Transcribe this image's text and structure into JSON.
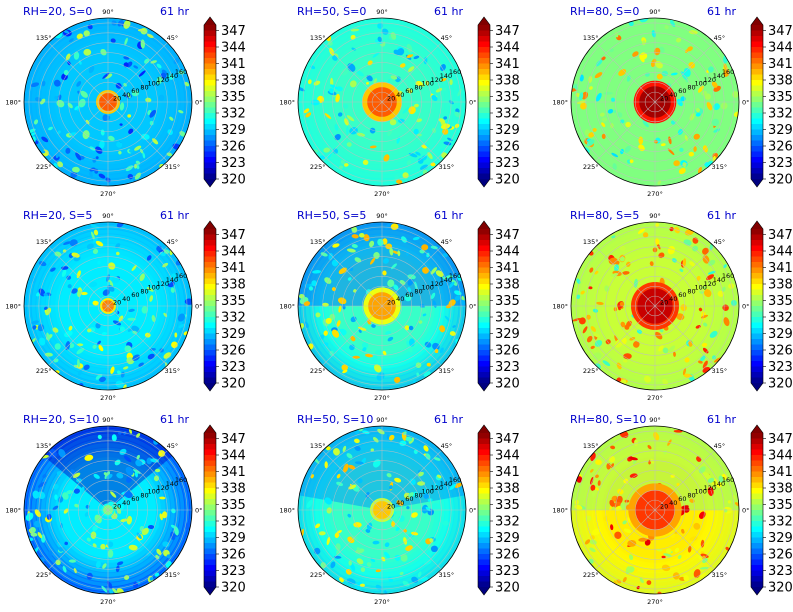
{
  "figure": {
    "colorbar_ticks": [
      "347",
      "344",
      "341",
      "338",
      "335",
      "332",
      "329",
      "326",
      "323",
      "320"
    ],
    "colorbar_range": [
      320,
      348
    ],
    "colorbar_colormap": "jet",
    "title_color": "#0000cc",
    "radial_tick_labels": [
      "20",
      "40",
      "60",
      "80",
      "100",
      "120",
      "140",
      "160"
    ],
    "angle_tick_labels": [
      "90°",
      "45°",
      "0°",
      "315°",
      "270°",
      "225°",
      "180°",
      "135°"
    ]
  },
  "chart_data": [
    {
      "type": "heatmap",
      "projection": "polar",
      "title_left": "RH=20, S=0",
      "title_right": "61 hr",
      "rlim": [
        0,
        170
      ],
      "center_value": 342,
      "background_value": 329,
      "outer_value": 328,
      "core_radius_km": 18,
      "eyewall_radius_km": 18,
      "asymmetry_deg": 0
    },
    {
      "type": "heatmap",
      "projection": "polar",
      "title_left": "RH=50, S=0",
      "title_right": "61 hr",
      "rlim": [
        0,
        170
      ],
      "center_value": 342,
      "background_value": 332,
      "outer_value": 331,
      "core_radius_km": 30,
      "eyewall_radius_km": 30,
      "asymmetry_deg": 0
    },
    {
      "type": "heatmap",
      "projection": "polar",
      "title_left": "RH=80, S=0",
      "title_right": "61 hr",
      "rlim": [
        0,
        170
      ],
      "center_value": 347,
      "background_value": 334,
      "outer_value": 334,
      "core_radius_km": 32,
      "eyewall_radius_km": 32,
      "asymmetry_deg": 0
    },
    {
      "type": "heatmap",
      "projection": "polar",
      "title_left": "RH=20, S=5",
      "title_right": "61 hr",
      "rlim": [
        0,
        170
      ],
      "center_value": 341,
      "background_value": 330,
      "outer_value": 328,
      "core_radius_km": 12,
      "eyewall_radius_km": 12,
      "asymmetry_deg": 0
    },
    {
      "type": "heatmap",
      "projection": "polar",
      "title_left": "RH=50, S=5",
      "title_right": "61 hr",
      "rlim": [
        0,
        170
      ],
      "center_value": 340,
      "background_value": 332,
      "outer_value": 328,
      "core_radius_km": 28,
      "eyewall_radius_km": 28,
      "asymmetry_deg": 20
    },
    {
      "type": "heatmap",
      "projection": "polar",
      "title_left": "RH=80, S=5",
      "title_right": "61 hr",
      "rlim": [
        0,
        170
      ],
      "center_value": 346,
      "background_value": 336,
      "outer_value": 335,
      "core_radius_km": 36,
      "eyewall_radius_km": 36,
      "asymmetry_deg": 0
    },
    {
      "type": "heatmap",
      "projection": "polar",
      "title_left": "RH=20, S=10",
      "title_right": "61 hr",
      "rlim": [
        0,
        170
      ],
      "center_value": 334,
      "background_value": 330,
      "outer_value": 324,
      "core_radius_km": 10,
      "eyewall_radius_km": 10,
      "asymmetry_deg": 60
    },
    {
      "type": "heatmap",
      "projection": "polar",
      "title_left": "RH=50, S=10",
      "title_right": "61 hr",
      "rlim": [
        0,
        170
      ],
      "center_value": 339,
      "background_value": 332,
      "outer_value": 329,
      "core_radius_km": 18,
      "eyewall_radius_km": 18,
      "asymmetry_deg": 30
    },
    {
      "type": "heatmap",
      "projection": "polar",
      "title_left": "RH=80, S=10",
      "title_right": "61 hr",
      "rlim": [
        0,
        170
      ],
      "center_value": 343,
      "background_value": 338,
      "outer_value": 336,
      "core_radius_km": 40,
      "eyewall_radius_km": 40,
      "asymmetry_deg": 20
    }
  ]
}
